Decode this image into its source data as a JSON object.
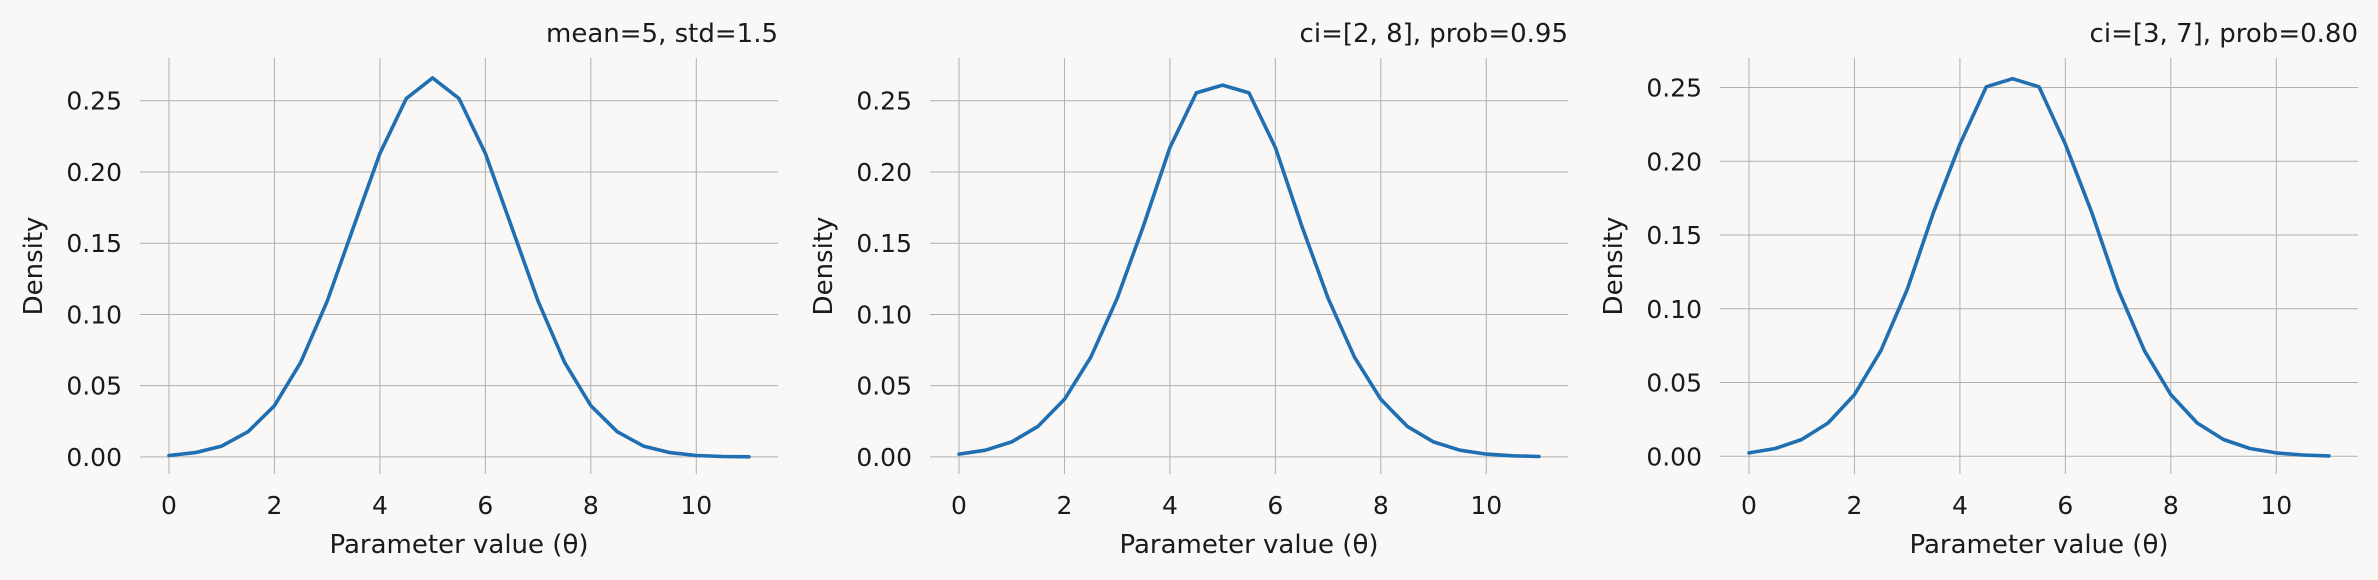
{
  "figure": {
    "background": "#f9f8f6",
    "line_color": "#1f6fb2"
  },
  "chart_data": [
    {
      "type": "line",
      "title": "mean=5, std=1.5",
      "xlabel": "Parameter value (θ)",
      "ylabel": "Density",
      "xlim": [
        -0.55,
        11.55
      ],
      "ylim": [
        -0.012,
        0.28
      ],
      "xticks": [
        0,
        2,
        4,
        6,
        8,
        10
      ],
      "yticks": [
        0.0,
        0.05,
        0.1,
        0.15,
        0.2,
        0.25
      ],
      "grid": true,
      "series": [
        {
          "x": [
            0,
            0.5,
            1,
            1.5,
            2,
            2.5,
            3,
            3.5,
            4,
            4.5,
            5,
            5.5,
            6,
            6.5,
            7,
            7.5,
            8,
            8.5,
            9,
            9.5,
            10,
            10.5,
            11
          ],
          "y": [
            0.001,
            0.003,
            0.0076,
            0.0177,
            0.036,
            0.0665,
            0.1093,
            0.1613,
            0.213,
            0.2516,
            0.266,
            0.2516,
            0.213,
            0.1613,
            0.1093,
            0.0665,
            0.036,
            0.0177,
            0.0076,
            0.003,
            0.001,
            0.0003,
            0.0001
          ]
        }
      ]
    },
    {
      "type": "line",
      "title": "ci=[2, 8], prob=0.95",
      "xlabel": "Parameter value (θ)",
      "ylabel": "Density",
      "xlim": [
        -0.55,
        11.55
      ],
      "ylim": [
        -0.012,
        0.28
      ],
      "xticks": [
        0,
        2,
        4,
        6,
        8,
        10
      ],
      "yticks": [
        0.0,
        0.05,
        0.1,
        0.15,
        0.2,
        0.25
      ],
      "grid": true,
      "series": [
        {
          "x": [
            0,
            0.5,
            1,
            1.5,
            2,
            2.5,
            3,
            3.5,
            4,
            4.5,
            5,
            5.5,
            6,
            6.5,
            7,
            7.5,
            8,
            8.5,
            9,
            9.5,
            10,
            10.5,
            11
          ],
          "y": [
            0.002,
            0.0047,
            0.0105,
            0.0215,
            0.0404,
            0.07,
            0.1113,
            0.1623,
            0.2171,
            0.2555,
            0.261,
            0.2555,
            0.2171,
            0.1623,
            0.1113,
            0.07,
            0.0404,
            0.0215,
            0.0105,
            0.0047,
            0.002,
            0.0008,
            0.0003
          ]
        }
      ]
    },
    {
      "type": "line",
      "title": "ci=[3, 7], prob=0.80",
      "xlabel": "Parameter value (θ)",
      "ylabel": "Density",
      "xlim": [
        -0.55,
        11.55
      ],
      "ylim": [
        -0.012,
        0.27
      ],
      "xticks": [
        0,
        2,
        4,
        6,
        8,
        10
      ],
      "yticks": [
        0.0,
        0.05,
        0.1,
        0.15,
        0.2,
        0.25
      ],
      "grid": true,
      "series": [
        {
          "x": [
            0,
            0.5,
            1,
            1.5,
            2,
            2.5,
            3,
            3.5,
            4,
            4.5,
            5,
            5.5,
            6,
            6.5,
            7,
            7.5,
            8,
            8.5,
            9,
            9.5,
            10,
            10.5,
            11
          ],
          "y": [
            0.0023,
            0.0053,
            0.0114,
            0.0226,
            0.0418,
            0.0715,
            0.1131,
            0.1654,
            0.2115,
            0.2505,
            0.256,
            0.2505,
            0.2115,
            0.1654,
            0.1131,
            0.0715,
            0.0418,
            0.0226,
            0.0114,
            0.0053,
            0.0023,
            0.0009,
            0.0003
          ]
        }
      ]
    }
  ]
}
